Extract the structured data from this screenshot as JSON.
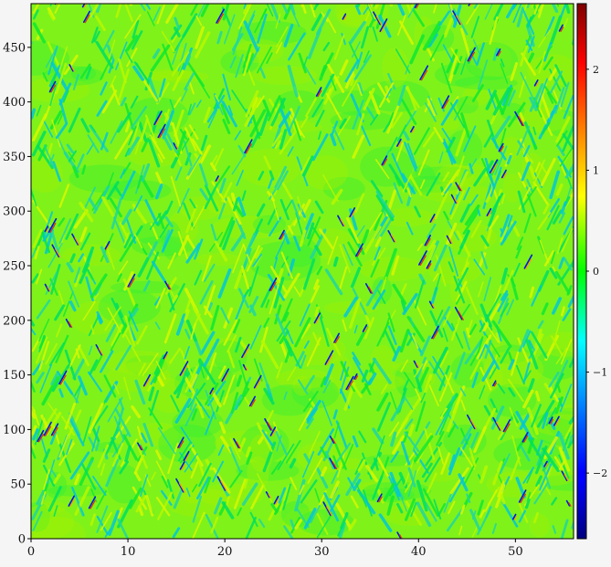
{
  "chart_data": {
    "type": "heatmap",
    "title": "",
    "xlabel": "",
    "ylabel": "",
    "xlim": [
      0,
      56
    ],
    "ylim": [
      0,
      490
    ],
    "x_ticks": [
      0,
      10,
      20,
      30,
      40,
      50
    ],
    "y_ticks": [
      0,
      50,
      100,
      150,
      200,
      250,
      300,
      350,
      400,
      450
    ],
    "colorbar": {
      "colormap": "jet",
      "vmin": -2.65,
      "vmax": 2.65,
      "ticks": [
        -2,
        -1,
        0,
        1,
        2
      ],
      "tick_labels": [
        "−2",
        "−1",
        "0",
        "1",
        "2"
      ]
    },
    "pattern": "space-time field of diagonal streak structures; values mostly near 0 with sparse strong positive/negative defects",
    "grid": false,
    "legend": "none"
  },
  "colors": {
    "background": "#f5f5f5",
    "axis": "#000000"
  }
}
